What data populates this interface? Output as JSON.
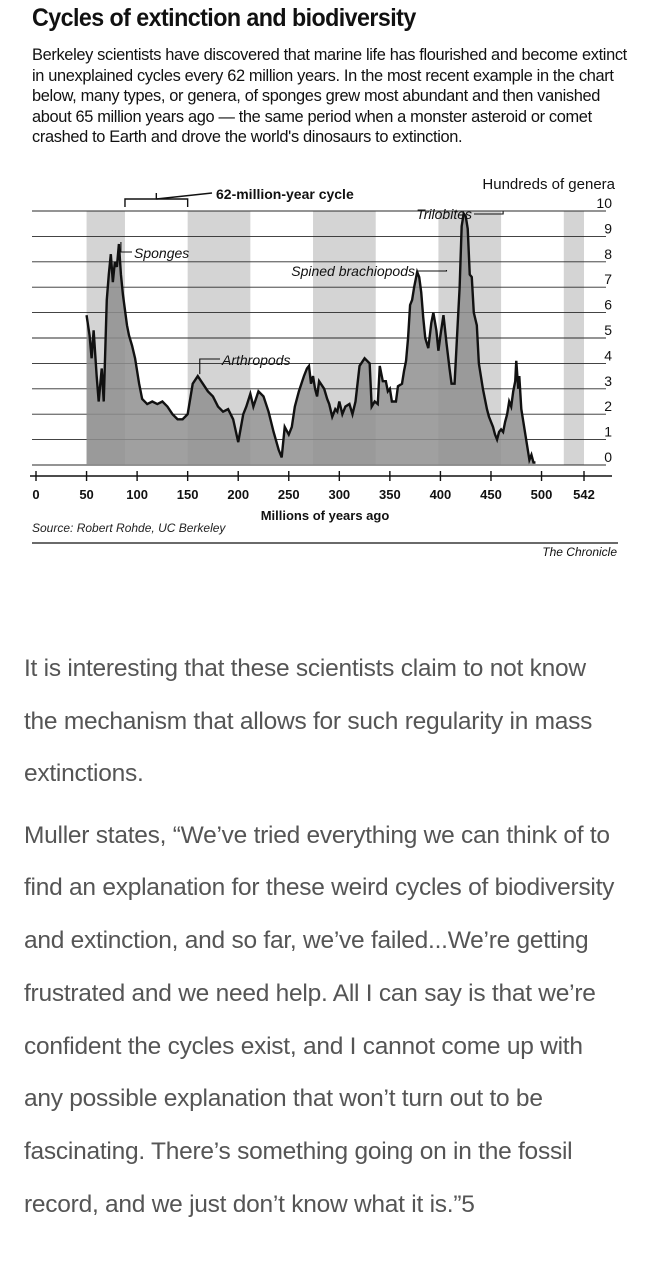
{
  "figure": {
    "title": "Cycles of extinction and biodiversity",
    "subtitle": "Berkeley scientists have discovered that marine life has flourished and become extinct in unexplained cycles every 62 million years. In the most recent example in the chart below, many types, or genera, of sponges grew most abundant and then vanished about 65 million years ago — the same period when a monster asteroid or comet crashed to Earth and drove the world's dinosaurs to extinction.",
    "source": "Source: Robert Rohde, UC Berkeley",
    "credit": "The Chronicle"
  },
  "chart_data": {
    "type": "line",
    "xlabel": "Millions of years ago",
    "ylabel": "Hundreds of genera",
    "xlim": [
      0,
      542
    ],
    "ylim": [
      0,
      10
    ],
    "x_ticks": [
      0,
      50,
      100,
      150,
      200,
      250,
      300,
      350,
      400,
      450,
      500,
      542
    ],
    "y_ticks": [
      0,
      1,
      2,
      3,
      4,
      5,
      6,
      7,
      8,
      9,
      10
    ],
    "y_axis_side": "right",
    "grid": "horizontal",
    "shaded_bands": [
      [
        50,
        88
      ],
      [
        150,
        212
      ],
      [
        274,
        336
      ],
      [
        398,
        460
      ],
      [
        522,
        542
      ]
    ],
    "cycle_bracket": {
      "label": "62-million-year cycle",
      "from": 88,
      "to": 150
    },
    "series": [
      {
        "points": [
          [
            50,
            5.9
          ],
          [
            53,
            5.1
          ],
          [
            55,
            4.2
          ],
          [
            57,
            5.3
          ],
          [
            60,
            3.5
          ],
          [
            62,
            2.5
          ],
          [
            65,
            3.8
          ],
          [
            67,
            2.5
          ],
          [
            70,
            6.5
          ],
          [
            72,
            7.5
          ],
          [
            74,
            8.3
          ],
          [
            76,
            7.2
          ],
          [
            78,
            8.0
          ],
          [
            80,
            7.8
          ],
          [
            82,
            8.7
          ],
          [
            84,
            7.5
          ],
          [
            86,
            6.7
          ],
          [
            88,
            6.1
          ],
          [
            90,
            5.5
          ],
          [
            92,
            5.1
          ],
          [
            95,
            4.7
          ],
          [
            98,
            4.2
          ],
          [
            100,
            3.7
          ],
          [
            102,
            3.2
          ],
          [
            105,
            2.6
          ],
          [
            110,
            2.4
          ],
          [
            115,
            2.5
          ],
          [
            120,
            2.4
          ],
          [
            125,
            2.5
          ],
          [
            130,
            2.3
          ],
          [
            135,
            2.0
          ],
          [
            140,
            1.8
          ],
          [
            145,
            1.8
          ],
          [
            150,
            2.0
          ],
          [
            155,
            3.2
          ],
          [
            160,
            3.5
          ],
          [
            165,
            3.2
          ],
          [
            170,
            2.9
          ],
          [
            175,
            2.7
          ],
          [
            180,
            2.3
          ],
          [
            185,
            2.1
          ],
          [
            190,
            2.2
          ],
          [
            195,
            1.8
          ],
          [
            200,
            0.9
          ],
          [
            205,
            2.0
          ],
          [
            208,
            2.3
          ],
          [
            212,
            2.8
          ],
          [
            215,
            2.3
          ],
          [
            220,
            2.9
          ],
          [
            225,
            2.7
          ],
          [
            230,
            2.1
          ],
          [
            235,
            1.3
          ],
          [
            240,
            0.6
          ],
          [
            243,
            0.3
          ],
          [
            246,
            1.5
          ],
          [
            250,
            1.2
          ],
          [
            253,
            1.5
          ],
          [
            256,
            2.3
          ],
          [
            258,
            2.6
          ],
          [
            260,
            2.9
          ],
          [
            265,
            3.5
          ],
          [
            268,
            3.8
          ],
          [
            270,
            3.9
          ],
          [
            272,
            3.2
          ],
          [
            274,
            3.5
          ],
          [
            276,
            3.0
          ],
          [
            278,
            2.7
          ],
          [
            280,
            3.3
          ],
          [
            285,
            3.0
          ],
          [
            288,
            2.6
          ],
          [
            290,
            2.4
          ],
          [
            293,
            1.9
          ],
          [
            296,
            2.2
          ],
          [
            298,
            2.1
          ],
          [
            300,
            2.5
          ],
          [
            303,
            2.0
          ],
          [
            306,
            2.3
          ],
          [
            310,
            2.4
          ],
          [
            313,
            2.0
          ],
          [
            316,
            2.5
          ],
          [
            320,
            3.9
          ],
          [
            325,
            4.2
          ],
          [
            330,
            4.0
          ],
          [
            332,
            2.3
          ],
          [
            335,
            2.5
          ],
          [
            338,
            2.4
          ],
          [
            340,
            3.9
          ],
          [
            343,
            3.3
          ],
          [
            346,
            3.3
          ],
          [
            348,
            2.9
          ],
          [
            350,
            3.0
          ],
          [
            352,
            2.5
          ],
          [
            356,
            2.5
          ],
          [
            358,
            3.1
          ],
          [
            362,
            3.2
          ],
          [
            364,
            3.7
          ],
          [
            366,
            4.1
          ],
          [
            368,
            5.0
          ],
          [
            370,
            6.3
          ],
          [
            372,
            6.5
          ],
          [
            374,
            7.0
          ],
          [
            377,
            7.6
          ],
          [
            379,
            7.4
          ],
          [
            381,
            6.8
          ],
          [
            383,
            5.8
          ],
          [
            385,
            5.0
          ],
          [
            388,
            4.6
          ],
          [
            391,
            5.6
          ],
          [
            393,
            6.0
          ],
          [
            396,
            5.3
          ],
          [
            398,
            4.5
          ],
          [
            400,
            5.1
          ],
          [
            403,
            5.9
          ],
          [
            406,
            4.8
          ],
          [
            409,
            3.8
          ],
          [
            411,
            3.2
          ],
          [
            414,
            3.2
          ],
          [
            417,
            5.5
          ],
          [
            419,
            7.0
          ],
          [
            421,
            9.4
          ],
          [
            423,
            9.9
          ],
          [
            425,
            9.8
          ],
          [
            427,
            9.3
          ],
          [
            429,
            7.5
          ],
          [
            431,
            7.4
          ],
          [
            433,
            6.0
          ],
          [
            436,
            5.5
          ],
          [
            438,
            4.0
          ],
          [
            440,
            3.5
          ],
          [
            442,
            3.0
          ],
          [
            444,
            2.6
          ],
          [
            446,
            2.2
          ],
          [
            448,
            1.9
          ],
          [
            450,
            1.7
          ],
          [
            452,
            1.5
          ],
          [
            454,
            1.2
          ],
          [
            456,
            1.0
          ],
          [
            458,
            1.3
          ],
          [
            460,
            1.4
          ],
          [
            462,
            1.3
          ],
          [
            464,
            1.7
          ],
          [
            466,
            2.0
          ],
          [
            468,
            2.5
          ],
          [
            470,
            2.3
          ],
          [
            472,
            2.9
          ],
          [
            474,
            3.3
          ],
          [
            475,
            4.1
          ],
          [
            477,
            3.0
          ],
          [
            478,
            3.5
          ],
          [
            480,
            2.2
          ],
          [
            482,
            1.7
          ],
          [
            484,
            1.2
          ],
          [
            486,
            0.7
          ],
          [
            488,
            0.2
          ],
          [
            490,
            0.4
          ],
          [
            492,
            0.1
          ],
          [
            494,
            0.1
          ]
        ]
      }
    ],
    "annotations": [
      {
        "label": "Sponges",
        "x": 82,
        "y": 8.7
      },
      {
        "label": "Arthropods",
        "x": 160,
        "y": 3.5
      },
      {
        "label": "Spined brachiopods",
        "x": 406,
        "y": 7.6
      },
      {
        "label": "Trilobites",
        "x": 462,
        "y": 9.9
      }
    ]
  },
  "article": {
    "paragraph1": "It is interesting that these scientists claim to not know the mechanism that allows for such regularity in mass extinctions.",
    "paragraph2": "Muller states, “We’ve tried everything we can think of to find an explanation for these weird cycles of biodiversity and extinction, and so far, we’ve failed...We’re getting frustrated and we need help.  All I can say is that we’re confident the cycles exist, and I cannot come up with any possible explanation that won’t turn out to be fascinating. There’s something going on in the fossil record, and we just don’t know what it is.”5"
  }
}
